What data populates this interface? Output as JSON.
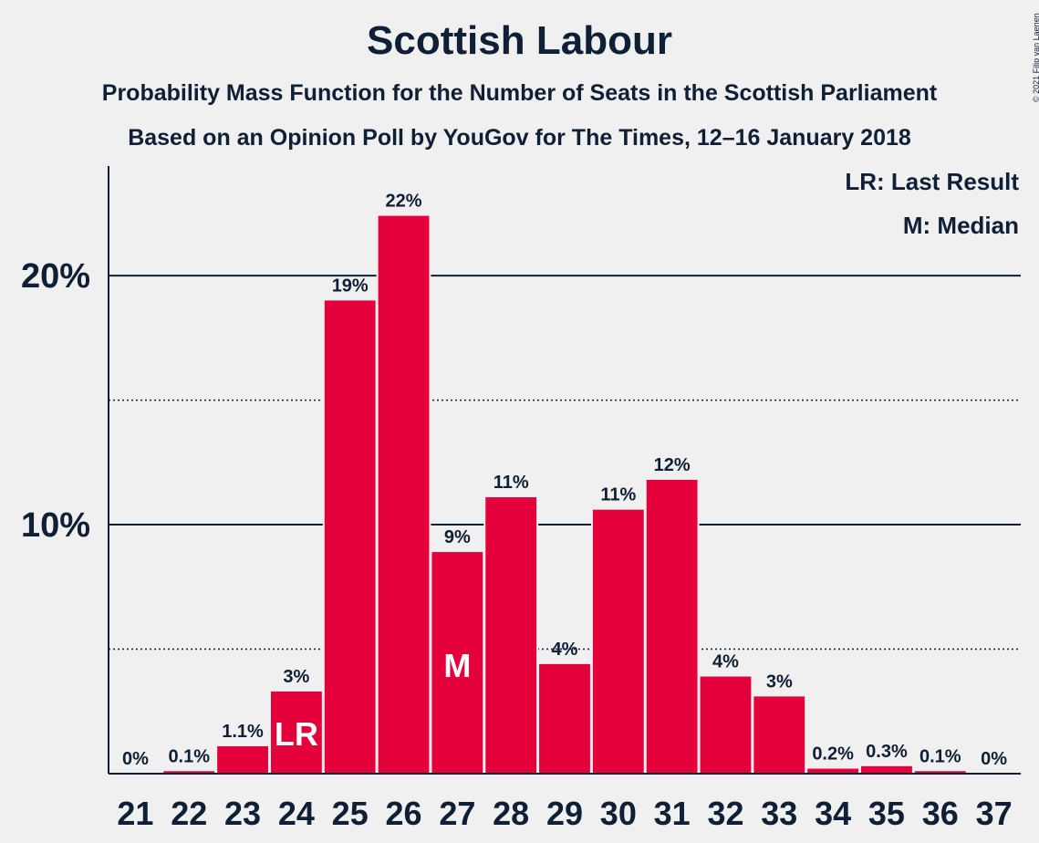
{
  "header": {
    "title": "Scottish Labour",
    "subtitle1": "Probability Mass Function for the Number of Seats in the Scottish Parliament",
    "subtitle2": "Based on an Opinion Poll by YouGov for The Times, 12–16 January 2018",
    "copyright": "© 2021 Filip van Laenen"
  },
  "legend": {
    "last_result": "LR: Last Result",
    "median": "M: Median"
  },
  "colors": {
    "bar": "#e4003b",
    "text": "#0f1f35",
    "background": "#f0f0f0",
    "inbar_text": "#ffffff"
  },
  "chart_data": {
    "type": "bar",
    "title": "Scottish Labour",
    "categories": [
      "21",
      "22",
      "23",
      "24",
      "25",
      "26",
      "27",
      "28",
      "29",
      "30",
      "31",
      "32",
      "33",
      "34",
      "35",
      "36",
      "37"
    ],
    "values": [
      0,
      0.1,
      1.1,
      3.3,
      19.0,
      22.4,
      8.9,
      11.1,
      4.4,
      10.6,
      11.8,
      3.9,
      3.1,
      0.2,
      0.3,
      0.1,
      0
    ],
    "data_labels": [
      "0%",
      "0.1%",
      "1.1%",
      "3%",
      "19%",
      "22%",
      "9%",
      "11%",
      "4%",
      "11%",
      "12%",
      "4%",
      "3%",
      "0.2%",
      "0.3%",
      "0.1%",
      "0%"
    ],
    "ylim": [
      0,
      24.4
    ],
    "yticks": [
      10,
      20
    ],
    "ytick_labels": [
      "10%",
      "20%"
    ],
    "dotted_gridlines": [
      5,
      15
    ],
    "markers": [
      {
        "category": "24",
        "label": "LR"
      },
      {
        "category": "27",
        "label": "M"
      }
    ],
    "grid": true
  }
}
